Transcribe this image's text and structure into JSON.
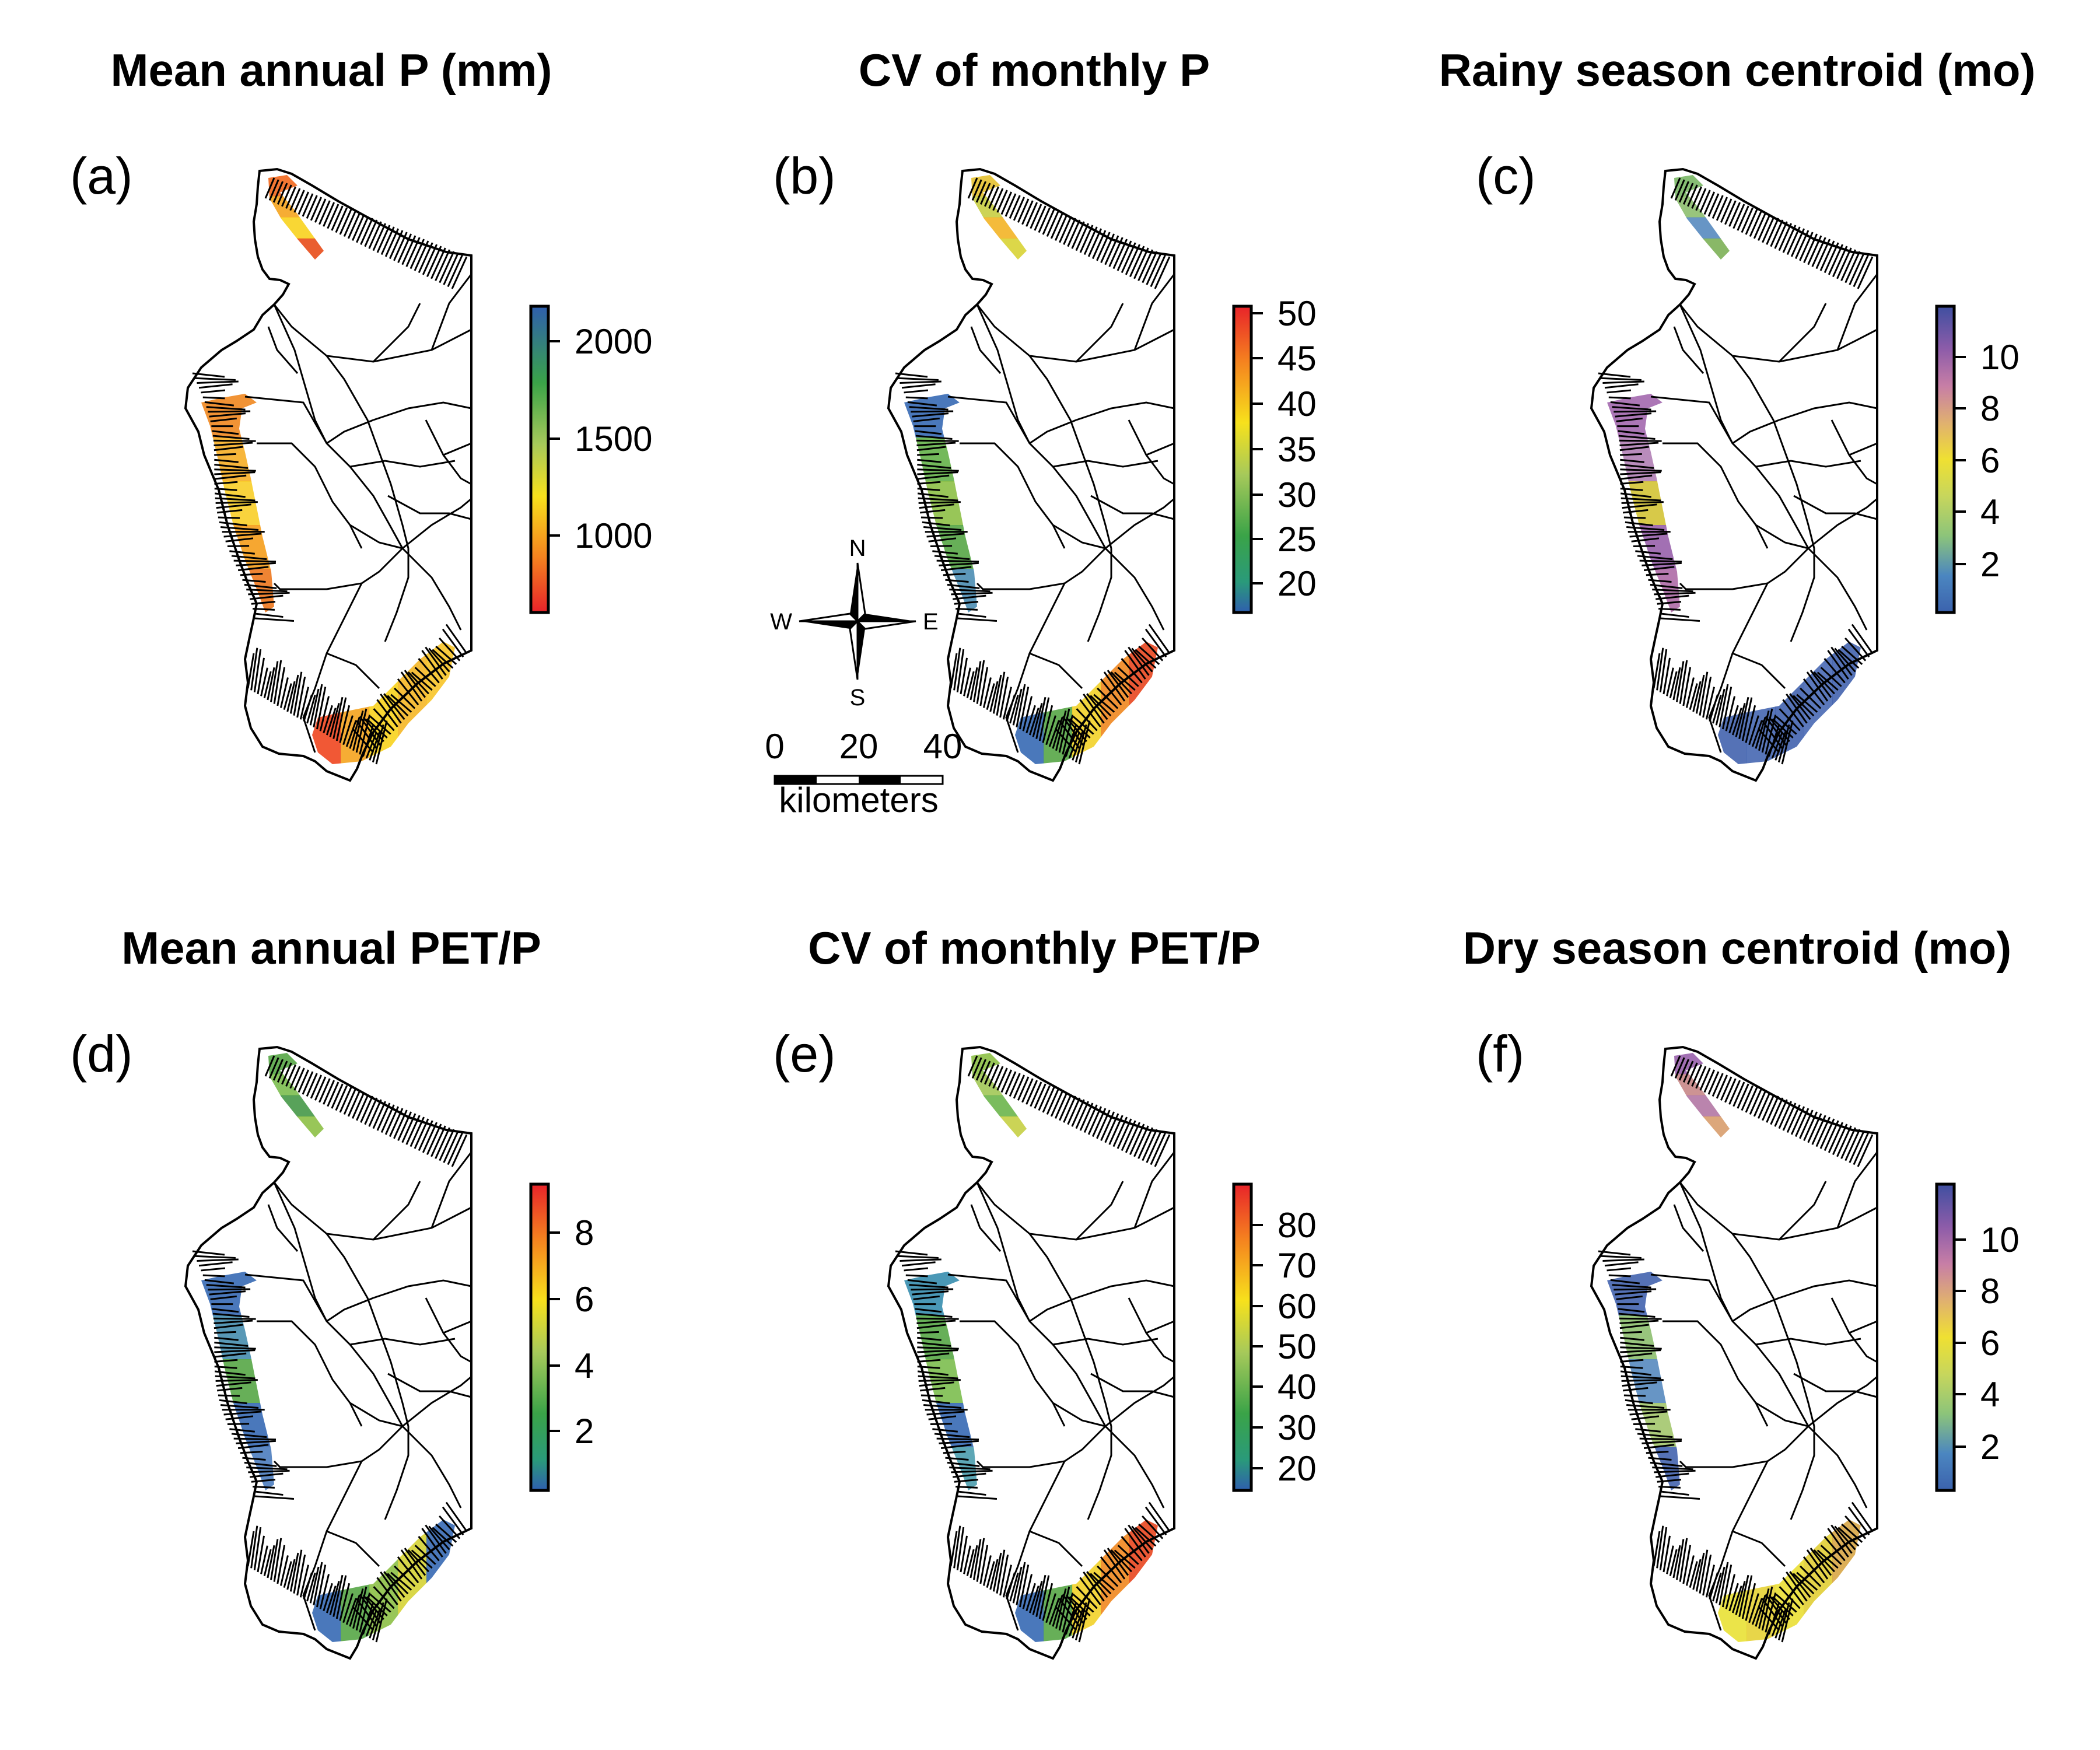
{
  "panels": [
    {
      "id": "a",
      "label": "(a)",
      "title": "Mean annual P (mm)",
      "colorbar": {
        "ticks": [
          "2000",
          "1500",
          "1000"
        ],
        "ramp": "red-to-blue"
      },
      "zones": {
        "north": [
          "#f26b22",
          "#f5a623",
          "#f9d423",
          "#e8501e"
        ],
        "central": [
          "#f08a24",
          "#f6b02a",
          "#f9cf2c",
          "#f5a020",
          "#ee7a22"
        ],
        "south": [
          "#f04a24",
          "#f5a623",
          "#f9d423",
          "#f5b82a",
          "#f7c52c"
        ]
      }
    },
    {
      "id": "b",
      "label": "(b)",
      "title": "CV of monthly P",
      "colorbar": {
        "ticks": [
          "50",
          "45",
          "40",
          "35",
          "30",
          "25",
          "20"
        ],
        "ramp": "blue-to-red"
      },
      "zones": {
        "north": [
          "#e6c233",
          "#c9cf46",
          "#f3b52a",
          "#d9d43a"
        ],
        "central": [
          "#3b6db5",
          "#67b34d",
          "#8fc14a",
          "#5aa84a",
          "#4f8fb4"
        ],
        "south": [
          "#3b6db5",
          "#5aa84a",
          "#f2d32e",
          "#f08a24",
          "#e84a24"
        ]
      }
    },
    {
      "id": "c",
      "label": "(c)",
      "title": "Rainy season centroid (mo)",
      "colorbar": {
        "ticks": [
          "10",
          "8",
          "6",
          "4",
          "2"
        ],
        "ramp": "month"
      },
      "zones": {
        "north": [
          "#7cb968",
          "#8fc072",
          "#5a8cc0",
          "#7fb25a"
        ],
        "central": [
          "#a56bb0",
          "#b382b6",
          "#d4c43a",
          "#9a64ad",
          "#b06ea8"
        ],
        "south": [
          "#4766b0",
          "#4a6ab3",
          "#4766b0",
          "#4d6db5",
          "#4766b0"
        ]
      }
    },
    {
      "id": "d",
      "label": "(d)",
      "title": "Mean annual PET/P",
      "colorbar": {
        "ticks": [
          "8",
          "6",
          "4",
          "2"
        ],
        "ramp": "blue-to-red"
      },
      "zones": {
        "north": [
          "#5aa84a",
          "#7fbf53",
          "#4a9a4c",
          "#8fc14a"
        ],
        "central": [
          "#3b6db5",
          "#4a8fb0",
          "#5aa84a",
          "#3b6db5",
          "#4f7fbf"
        ],
        "south": [
          "#3b6db5",
          "#5aa84a",
          "#8fc14a",
          "#d6d43a",
          "#3b6db5"
        ]
      }
    },
    {
      "id": "e",
      "label": "(e)",
      "title": "CV of monthly PET/P",
      "colorbar": {
        "ticks": [
          "80",
          "70",
          "60",
          "50",
          "40",
          "30",
          "20"
        ],
        "ramp": "blue-to-red"
      },
      "zones": {
        "north": [
          "#8fc14a",
          "#a4c95a",
          "#6fb64f",
          "#c7d048"
        ],
        "central": [
          "#3b8fb0",
          "#5aa84a",
          "#7fbf53",
          "#3b6db5",
          "#4f9fb0"
        ],
        "south": [
          "#3b6db5",
          "#5aa84a",
          "#f2d32e",
          "#f08a24",
          "#e84a24"
        ]
      }
    },
    {
      "id": "f",
      "label": "(f)",
      "title": "Dry season centroid (mo)",
      "colorbar": {
        "ticks": [
          "10",
          "8",
          "6",
          "4",
          "2"
        ],
        "ramp": "month"
      },
      "zones": {
        "north": [
          "#9a64ad",
          "#c98a8a",
          "#b47aa6",
          "#d9a070"
        ],
        "central": [
          "#4766b0",
          "#8fc072",
          "#5a8cc0",
          "#a5c870",
          "#4766b0"
        ],
        "south": [
          "#e9e23a",
          "#e6d23a",
          "#eadf3a",
          "#e2cf3a",
          "#d9a84a"
        ]
      }
    }
  ],
  "compass": {
    "n": "N",
    "s": "S",
    "e": "E",
    "w": "W"
  },
  "scalebar": {
    "ticks": [
      "0",
      "20",
      "40"
    ],
    "unit": "kilometers"
  },
  "colors": {
    "outline": "#000000",
    "background": "#ffffff"
  }
}
